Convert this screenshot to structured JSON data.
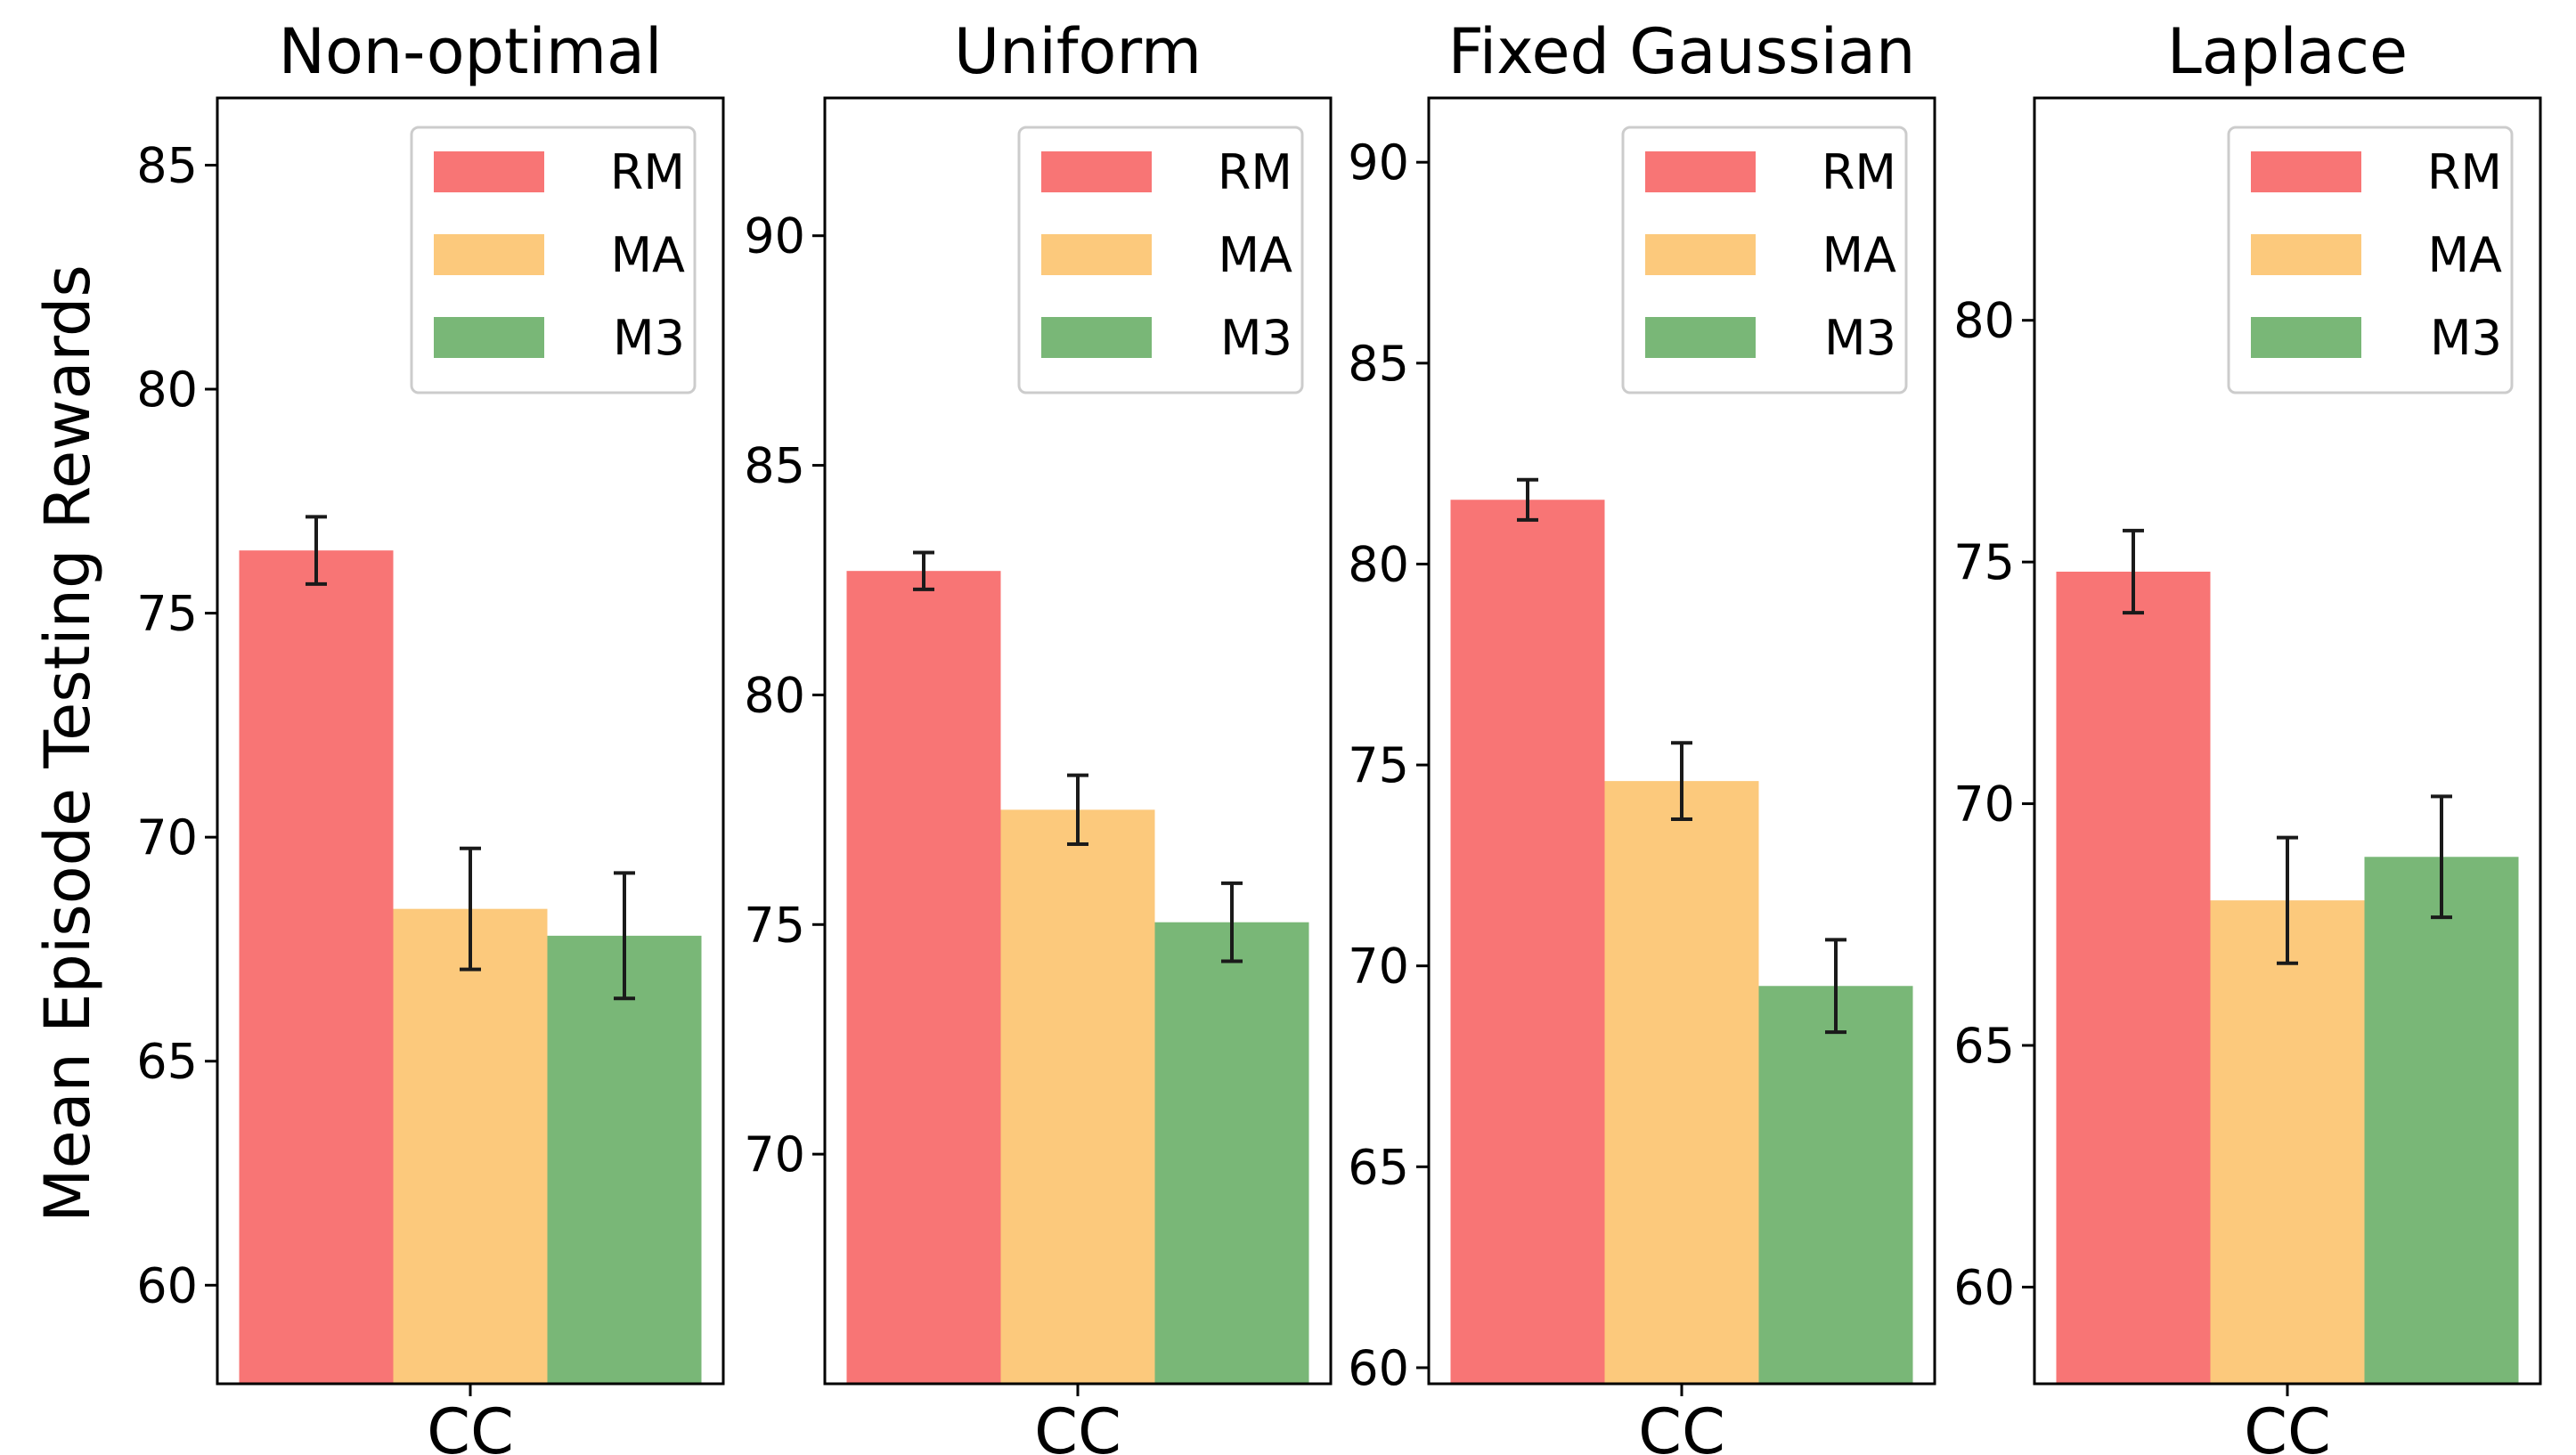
{
  "ylabel": "Mean Episode Testing Rewards",
  "colors": {
    "RM": "#f87575",
    "MA": "#fcc97c",
    "M3": "#79b777",
    "errorbar": "#1a1a1a",
    "axis": "#000000"
  },
  "chart_data": [
    {
      "type": "bar",
      "title": "Non-optimal",
      "categories": [
        "CC"
      ],
      "ylim": [
        57.8,
        86.5
      ],
      "yticks": [
        60,
        65,
        70,
        75,
        80,
        85
      ],
      "series": [
        {
          "name": "RM",
          "values": [
            76.4
          ],
          "err": [
            0.75
          ]
        },
        {
          "name": "MA",
          "values": [
            68.4
          ],
          "err": [
            1.35
          ]
        },
        {
          "name": "M3",
          "values": [
            67.8
          ],
          "err": [
            1.4
          ]
        }
      ],
      "legend": [
        "RM",
        "MA",
        "M3"
      ],
      "legend_position": "top-right"
    },
    {
      "type": "bar",
      "title": "Uniform",
      "categories": [
        "CC"
      ],
      "ylim": [
        65.0,
        93.0
      ],
      "yticks": [
        70,
        75,
        80,
        85,
        90
      ],
      "series": [
        {
          "name": "RM",
          "values": [
            82.7
          ],
          "err": [
            0.4
          ]
        },
        {
          "name": "MA",
          "values": [
            77.5
          ],
          "err": [
            0.75
          ]
        },
        {
          "name": "M3",
          "values": [
            75.05
          ],
          "err": [
            0.85
          ]
        }
      ],
      "legend": [
        "RM",
        "MA",
        "M3"
      ],
      "legend_position": "top-right"
    },
    {
      "type": "bar",
      "title": "Fixed Gaussian",
      "categories": [
        "CC"
      ],
      "ylim": [
        59.6,
        91.6
      ],
      "yticks": [
        60,
        65,
        70,
        75,
        80,
        85,
        90
      ],
      "series": [
        {
          "name": "RM",
          "values": [
            81.6
          ],
          "err": [
            0.5
          ]
        },
        {
          "name": "MA",
          "values": [
            74.6
          ],
          "err": [
            0.95
          ]
        },
        {
          "name": "M3",
          "values": [
            69.5
          ],
          "err": [
            1.15
          ]
        }
      ],
      "legend": [
        "RM",
        "MA",
        "M3"
      ],
      "legend_position": "top-right"
    },
    {
      "type": "bar",
      "title": "Laplace",
      "categories": [
        "CC"
      ],
      "ylim": [
        58.0,
        84.6
      ],
      "yticks": [
        60,
        65,
        70,
        75,
        80
      ],
      "series": [
        {
          "name": "RM",
          "values": [
            74.8
          ],
          "err": [
            0.85
          ]
        },
        {
          "name": "MA",
          "values": [
            68.0
          ],
          "err": [
            1.3
          ]
        },
        {
          "name": "M3",
          "values": [
            68.9
          ],
          "err": [
            1.25
          ]
        }
      ],
      "legend": [
        "RM",
        "MA",
        "M3"
      ],
      "legend_position": "top-right"
    }
  ]
}
